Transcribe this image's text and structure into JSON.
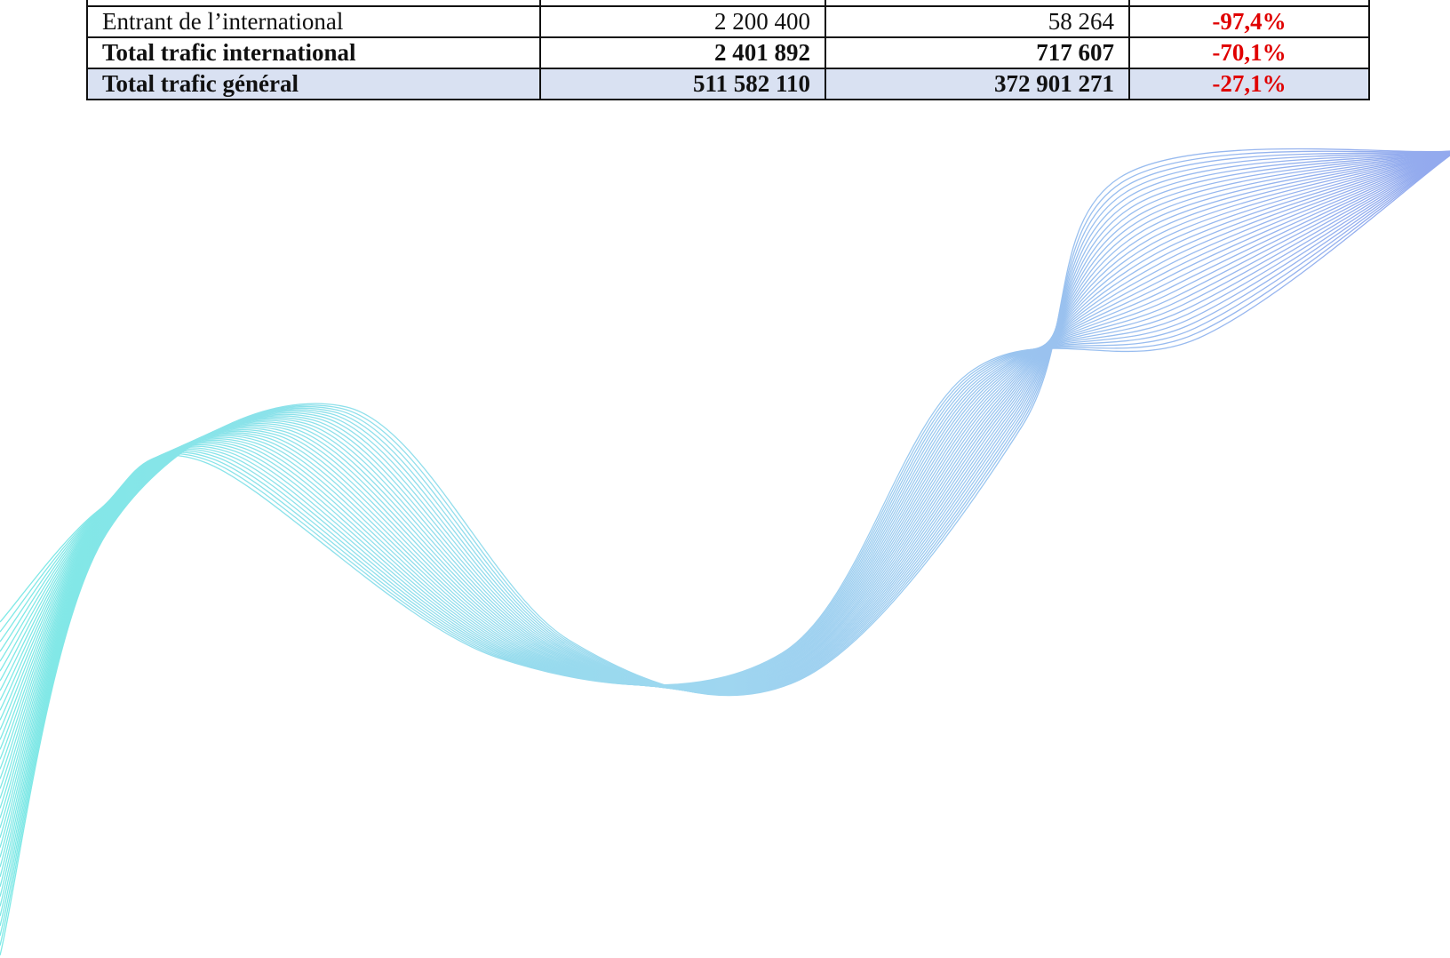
{
  "table": {
    "rows": [
      [
        "Entrant de l’international",
        "2 200 400",
        "58 264",
        "-97,4%"
      ],
      [
        "Total trafic international",
        "2 401 892",
        "717 607",
        "-70,1%"
      ],
      [
        "Total trafic général",
        "511 582 110",
        "372 901 271",
        "-27,1%"
      ]
    ]
  }
}
